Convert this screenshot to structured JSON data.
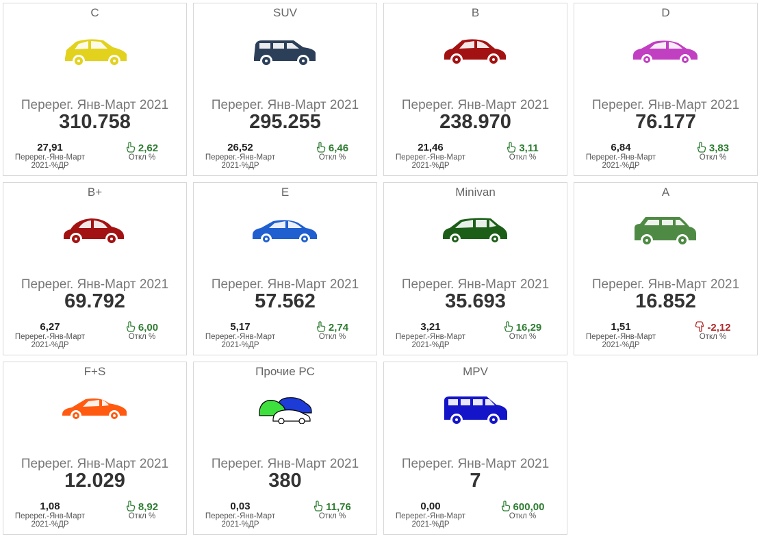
{
  "subtitle": "Перерег. Янв-Март 2021",
  "share_label_line1": "Перерег.-Янв-Март",
  "share_label_line2": "2021-%ДР",
  "dev_label": "Откл %",
  "cards": [
    {
      "category": "C",
      "value": "310.758",
      "share": "27,91",
      "dev": "2,62",
      "trend": "up",
      "color": "#e2d21e",
      "icon": "hatchback-icon"
    },
    {
      "category": "SUV",
      "value": "295.255",
      "share": "26,52",
      "dev": "6,46",
      "trend": "up",
      "color": "#2b3f59",
      "icon": "suv-icon"
    },
    {
      "category": "B",
      "value": "238.970",
      "share": "21,46",
      "dev": "3,11",
      "trend": "up",
      "color": "#a31212",
      "icon": "compact-car-icon"
    },
    {
      "category": "D",
      "value": "76.177",
      "share": "6,84",
      "dev": "3,83",
      "trend": "up",
      "color": "#c13fc1",
      "icon": "sedan-icon"
    },
    {
      "category": "B+",
      "value": "69.792",
      "share": "6,27",
      "dev": "6,00",
      "trend": "up",
      "color": "#a31212",
      "icon": "beetle-car-icon"
    },
    {
      "category": "E",
      "value": "57.562",
      "share": "5,17",
      "dev": "2,74",
      "trend": "up",
      "color": "#1f5fcf",
      "icon": "sedan-icon"
    },
    {
      "category": "Minivan",
      "value": "35.693",
      "share": "3,21",
      "dev": "16,29",
      "trend": "up",
      "color": "#1c5e18",
      "icon": "minivan-icon"
    },
    {
      "category": "A",
      "value": "16.852",
      "share": "1,51",
      "dev": "-2,12",
      "trend": "down",
      "color": "#4f8a45",
      "icon": "city-car-icon"
    },
    {
      "category": "F+S",
      "value": "12.029",
      "share": "1,08",
      "dev": "8,92",
      "trend": "up",
      "color": "#ff5a10",
      "icon": "sports-car-icon"
    },
    {
      "category": "Прочие РС",
      "value": "380",
      "share": "0,03",
      "dev": "11,76",
      "trend": "up",
      "color": "#1d3bd6",
      "icon": "car-group-icon"
    },
    {
      "category": "MPV",
      "value": "7",
      "share": "0,00",
      "dev": "600,00",
      "trend": "up",
      "color": "#1414c8",
      "icon": "van-icon"
    }
  ]
}
